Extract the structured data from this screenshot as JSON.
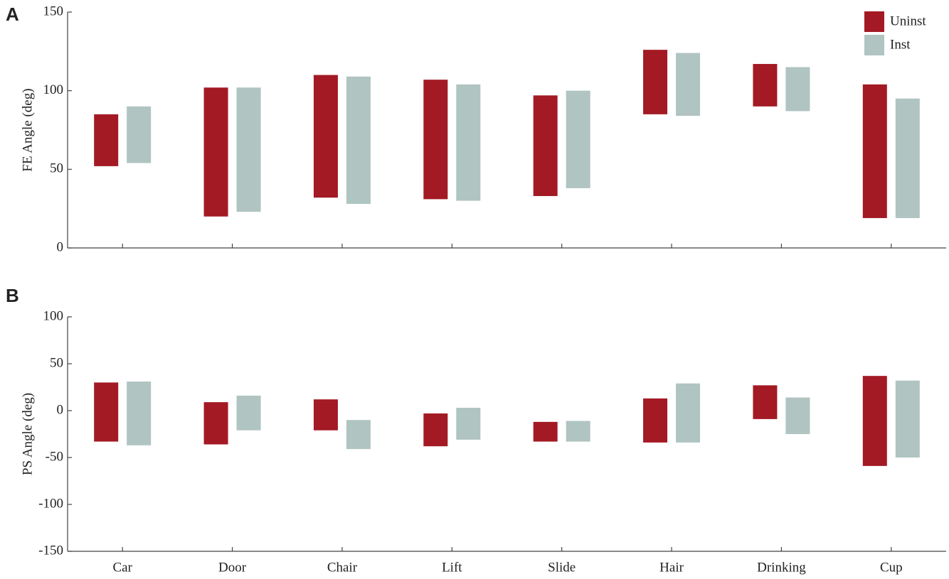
{
  "chart_data": [
    {
      "type": "bar",
      "panel": "A",
      "ylabel": "FE Angle (deg)",
      "ylim": [
        0,
        150
      ],
      "yticks": [
        0,
        50,
        100,
        150
      ],
      "legend": "top-right",
      "series": [
        {
          "name": "Uninst",
          "color": "#a31a24",
          "low": [
            52,
            20,
            32,
            31,
            33,
            85,
            90,
            19
          ],
          "high": [
            85,
            102,
            110,
            107,
            97,
            126,
            117,
            104
          ]
        },
        {
          "name": "Inst",
          "color": "#b0c4c1",
          "low": [
            54,
            23,
            28,
            30,
            38,
            84,
            87,
            19
          ],
          "high": [
            90,
            102,
            109,
            104,
            100,
            124,
            115,
            95
          ]
        }
      ]
    },
    {
      "type": "bar",
      "panel": "B",
      "ylabel": "PS Angle (deg)",
      "ylim": [
        -150,
        100
      ],
      "yticks": [
        -150,
        -100,
        -50,
        0,
        50,
        100
      ],
      "categories": [
        "Car",
        "Door",
        "Chair",
        "Lift",
        "Slide",
        "Hair",
        "Drinking",
        "Cup"
      ],
      "series": [
        {
          "color": "#a31a24",
          "low": [
            -33,
            -36,
            -21,
            -38,
            -33,
            -34,
            -9,
            -59
          ],
          "high": [
            30,
            9,
            12,
            -3,
            -12,
            13,
            27,
            37
          ]
        },
        {
          "color": "#b0c4c1",
          "low": [
            -37,
            -21,
            -41,
            -31,
            -33,
            -34,
            -25,
            -50
          ],
          "high": [
            31,
            16,
            -10,
            3,
            -11,
            29,
            14,
            32
          ]
        }
      ]
    }
  ]
}
